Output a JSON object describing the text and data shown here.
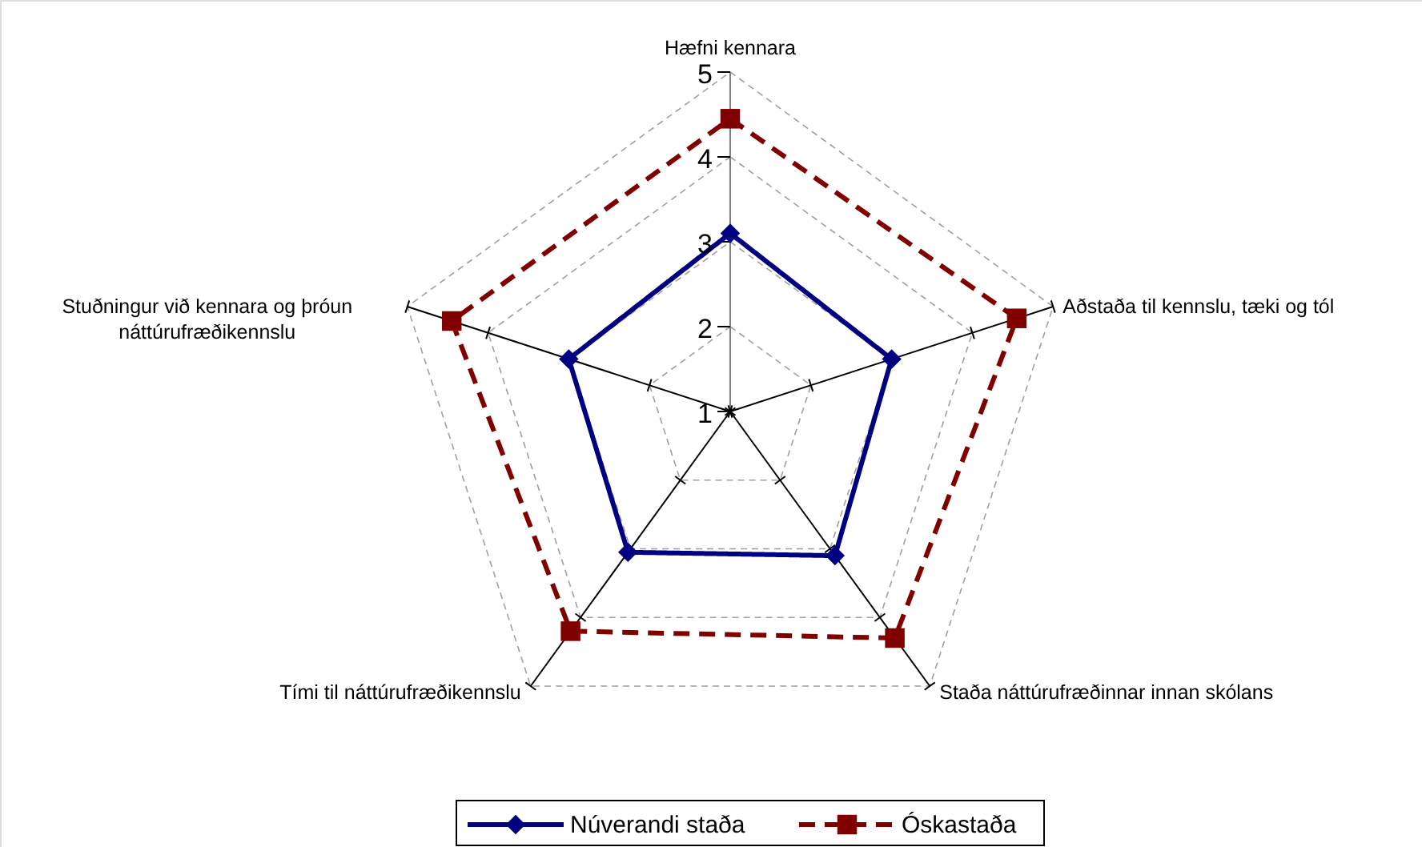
{
  "chart_data": {
    "type": "radar",
    "categories": [
      "Hæfni kennara",
      "Aðstaða til kennslu, tæki og tól",
      "Staða náttúrufræðinnar innan skólans",
      "Tími til náttúrufræðikennslu",
      "Stuðningur við kennara og þróun náttúrufræðikennslu"
    ],
    "series": [
      {
        "name": "Núverandi staða",
        "color": "#000080",
        "marker": "diamond",
        "line_style": "solid",
        "values": [
          3.1,
          3.0,
          3.1,
          3.05,
          3.0
        ]
      },
      {
        "name": "Óskastaða",
        "color": "#800000",
        "marker": "square",
        "line_style": "dashed",
        "values": [
          4.45,
          4.55,
          4.3,
          4.2,
          4.45
        ]
      }
    ],
    "ylim": [
      1,
      5
    ],
    "yticks": [
      1,
      2,
      3,
      4,
      5
    ],
    "grid": true,
    "legend": "bottom"
  }
}
